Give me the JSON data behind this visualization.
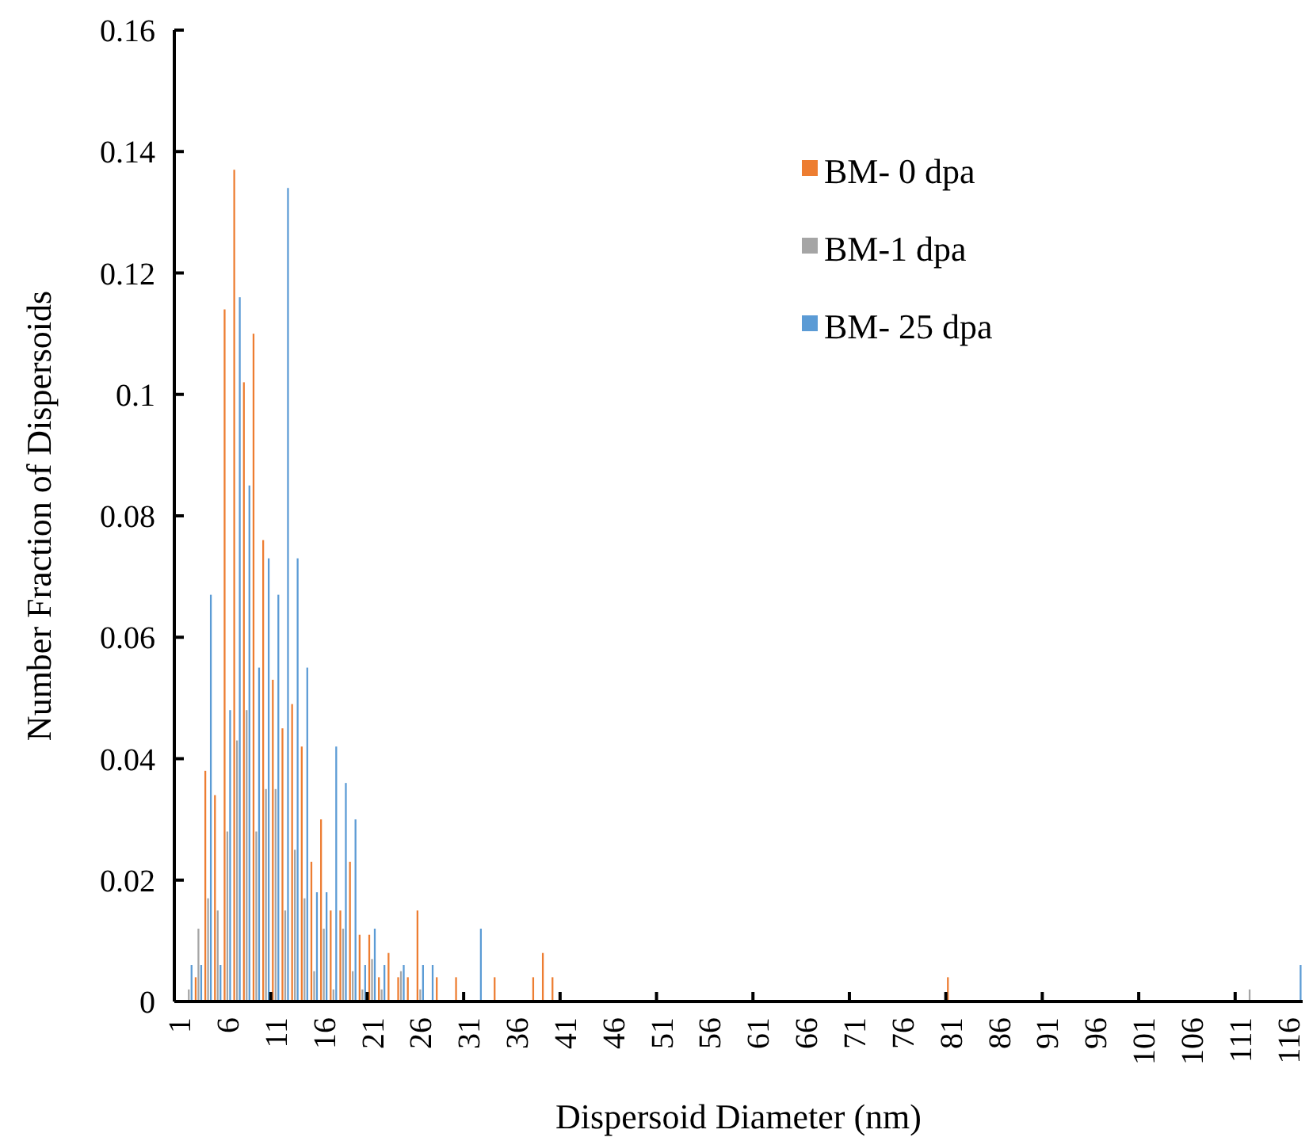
{
  "chart_data": {
    "type": "bar",
    "xlabel": "Dispersoid Diameter (nm)",
    "ylabel": "Number Fraction of Dispersoids",
    "categories": [
      "1",
      null,
      null,
      null,
      null,
      "6",
      null,
      null,
      null,
      null,
      "11",
      null,
      null,
      null,
      null,
      "16",
      null,
      null,
      null,
      null,
      "21",
      null,
      null,
      null,
      null,
      "26",
      null,
      null,
      null,
      null,
      "31",
      null,
      null,
      null,
      null,
      "36",
      null,
      null,
      null,
      null,
      "41",
      null,
      null,
      null,
      null,
      "46",
      null,
      null,
      null,
      null,
      "51",
      null,
      null,
      null,
      null,
      "56",
      null,
      null,
      null,
      null,
      "61",
      null,
      null,
      null,
      null,
      "66",
      null,
      null,
      null,
      null,
      "71",
      null,
      null,
      null,
      null,
      "76",
      null,
      null,
      null,
      null,
      "81",
      null,
      null,
      null,
      null,
      "86",
      null,
      null,
      null,
      null,
      "91",
      null,
      null,
      null,
      null,
      "96",
      null,
      null,
      null,
      null,
      "101",
      null,
      null,
      null,
      null,
      "106",
      null,
      null,
      null,
      null,
      "111",
      null,
      null,
      null,
      null,
      "116",
      null
    ],
    "series": [
      {
        "name": "BM- 0 dpa",
        "color": "#ed7d31",
        "values": [
          0,
          0,
          0.004,
          0.038,
          0.034,
          0.114,
          0.137,
          0.102,
          0.11,
          0.076,
          0.053,
          0.045,
          0.049,
          0.042,
          0.023,
          0.03,
          0.015,
          0.015,
          0.023,
          0.011,
          0.011,
          0.004,
          0.008,
          0.004,
          0.004,
          0.015,
          0,
          0.004,
          0,
          0.004,
          0,
          0,
          0,
          0.004,
          0,
          0,
          0,
          0.004,
          0.008,
          0.004,
          0,
          0,
          0,
          0,
          0,
          0,
          0,
          0,
          0,
          0,
          0,
          0,
          0,
          0,
          0,
          0,
          0,
          0,
          0,
          0,
          0,
          0,
          0,
          0,
          0,
          0,
          0,
          0,
          0,
          0,
          0,
          0,
          0,
          0,
          0,
          0,
          0,
          0,
          0,
          0,
          0.004,
          0,
          0,
          0,
          0,
          0,
          0,
          0,
          0,
          0,
          0,
          0,
          0,
          0,
          0,
          0,
          0,
          0,
          0,
          0,
          0,
          0,
          0,
          0,
          0,
          0,
          0,
          0,
          0,
          0,
          0,
          0,
          0,
          0,
          0,
          0,
          0
        ]
      },
      {
        "name": "BM-1 dpa",
        "color": "#a5a5a5",
        "values": [
          0,
          0.002,
          0.012,
          0.017,
          0.015,
          0.028,
          0.043,
          0.048,
          0.028,
          0.035,
          0.035,
          0.015,
          0.025,
          0.017,
          0.005,
          0.012,
          0.002,
          0.012,
          0.005,
          0.002,
          0.007,
          0.002,
          0,
          0.005,
          0,
          0.002,
          0,
          0,
          0,
          0,
          0,
          0,
          0,
          0,
          0,
          0,
          0,
          0,
          0,
          0,
          0,
          0,
          0,
          0,
          0,
          0,
          0,
          0,
          0,
          0,
          0,
          0,
          0,
          0,
          0,
          0,
          0,
          0,
          0,
          0,
          0,
          0,
          0,
          0,
          0,
          0,
          0,
          0,
          0,
          0,
          0,
          0,
          0,
          0,
          0,
          0,
          0,
          0,
          0,
          0,
          0,
          0,
          0,
          0,
          0,
          0,
          0,
          0,
          0,
          0,
          0,
          0,
          0,
          0,
          0,
          0,
          0,
          0,
          0,
          0,
          0,
          0,
          0,
          0,
          0,
          0,
          0,
          0,
          0,
          0,
          0,
          0.002,
          0,
          0,
          0,
          0,
          0
        ]
      },
      {
        "name": "BM- 25 dpa",
        "color": "#5b9bd5",
        "values": [
          0,
          0.006,
          0.006,
          0.067,
          0.006,
          0.048,
          0.116,
          0.085,
          0.055,
          0.073,
          0.067,
          0.134,
          0.073,
          0.055,
          0.018,
          0.018,
          0.042,
          0.036,
          0.03,
          0.006,
          0.012,
          0.006,
          0,
          0.006,
          0,
          0.006,
          0.006,
          0,
          0,
          0,
          0,
          0.012,
          0,
          0,
          0,
          0,
          0,
          0,
          0,
          0,
          0,
          0,
          0,
          0,
          0,
          0,
          0,
          0,
          0,
          0,
          0,
          0,
          0,
          0,
          0,
          0,
          0,
          0,
          0,
          0,
          0,
          0,
          0,
          0,
          0,
          0,
          0,
          0,
          0,
          0,
          0,
          0,
          0,
          0,
          0,
          0,
          0,
          0,
          0,
          0,
          0,
          0,
          0,
          0,
          0,
          0,
          0,
          0,
          0,
          0,
          0,
          0,
          0,
          0,
          0,
          0,
          0,
          0,
          0,
          0,
          0,
          0,
          0,
          0,
          0,
          0,
          0,
          0,
          0,
          0,
          0,
          0,
          0,
          0,
          0,
          0,
          0.006
        ]
      }
    ],
    "ylim": [
      0,
      0.16
    ],
    "yticks": [
      0,
      0.02,
      0.04,
      0.06,
      0.08,
      0.1,
      0.12,
      0.14,
      0.16
    ],
    "grid": false,
    "legend": "top right"
  }
}
